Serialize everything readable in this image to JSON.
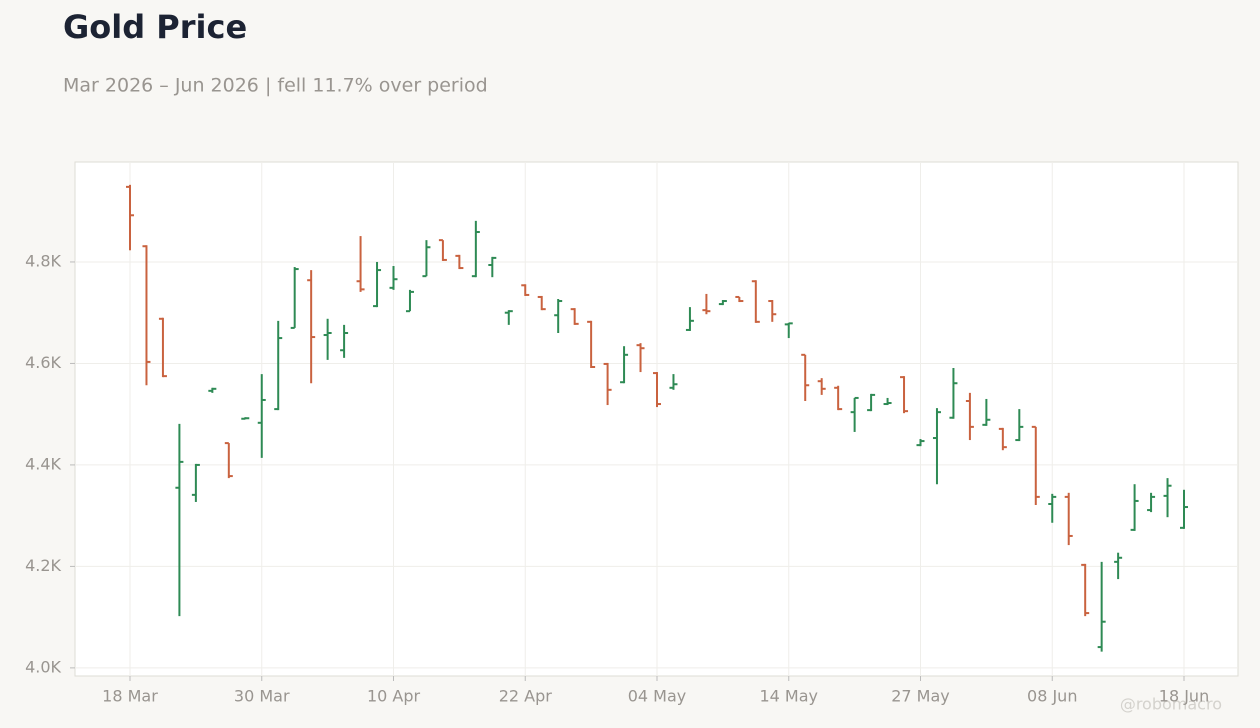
{
  "chart_data": {
    "type": "ohlc",
    "title": "Gold Price",
    "subtitle": "Mar 2026 – Jun 2026 | fell 11.7% over period",
    "watermark": "@robomacro",
    "categories": [
      "18 Mar",
      null,
      null,
      null,
      null,
      null,
      null,
      null,
      "30 Mar",
      null,
      null,
      null,
      null,
      null,
      null,
      null,
      "10 Apr",
      null,
      null,
      null,
      null,
      null,
      null,
      null,
      "22 Apr",
      null,
      null,
      null,
      null,
      null,
      null,
      null,
      "04 May",
      null,
      null,
      null,
      null,
      null,
      null,
      null,
      "14 May",
      null,
      null,
      null,
      null,
      null,
      null,
      null,
      "27 May",
      null,
      null,
      null,
      null,
      null,
      null,
      null,
      "08 Jun",
      null,
      null,
      null,
      null,
      null,
      null,
      null,
      "18 Jun"
    ],
    "open": [
      4948,
      4831,
      4688,
      4355,
      4341,
      4546,
      4443,
      4491,
      4483,
      4510,
      4670,
      4764,
      4656,
      4626,
      4762,
      4713,
      4749,
      4703,
      4772,
      4843,
      4812,
      4772,
      4794,
      4700,
      4754,
      4731,
      4695,
      4707,
      4682,
      4599,
      4563,
      4636,
      4581,
      4552,
      4666,
      4705,
      4717,
      4731,
      4762,
      4723,
      4677,
      4617,
      4565,
      4552,
      4504,
      4508,
      4520,
      4573,
      4439,
      4453,
      4493,
      4526,
      4479,
      4471,
      4449,
      4475,
      4323,
      4337,
      4203,
      4041,
      4209,
      4272,
      4311,
      4339,
      4276
    ],
    "high": [
      4952,
      4833,
      4690,
      4481,
      4402,
      4552,
      4443,
      4494,
      4579,
      4684,
      4790,
      4784,
      4688,
      4676,
      4851,
      4800,
      4792,
      4745,
      4843,
      4843,
      4814,
      4881,
      4810,
      4705,
      4756,
      4733,
      4727,
      4709,
      4684,
      4601,
      4634,
      4640,
      4583,
      4579,
      4711,
      4737,
      4725,
      4731,
      4764,
      4725,
      4680,
      4617,
      4571,
      4556,
      4532,
      4540,
      4532,
      4575,
      4451,
      4512,
      4591,
      4542,
      4530,
      4473,
      4510,
      4475,
      4343,
      4345,
      4205,
      4209,
      4227,
      4362,
      4345,
      4374,
      4351
    ],
    "low": [
      4823,
      4557,
      4573,
      4102,
      4327,
      4542,
      4374,
      4490,
      4414,
      4508,
      4670,
      4561,
      4607,
      4611,
      4741,
      4711,
      4745,
      4703,
      4772,
      4802,
      4786,
      4770,
      4770,
      4676,
      4733,
      4705,
      4660,
      4676,
      4591,
      4518,
      4561,
      4583,
      4514,
      4548,
      4664,
      4697,
      4715,
      4721,
      4680,
      4682,
      4650,
      4526,
      4538,
      4508,
      4465,
      4506,
      4518,
      4502,
      4437,
      4362,
      4491,
      4449,
      4477,
      4429,
      4447,
      4321,
      4286,
      4242,
      4102,
      4032,
      4175,
      4270,
      4307,
      4297,
      4274
    ],
    "close": [
      4892,
      4603,
      4575,
      4406,
      4400,
      4550,
      4378,
      4492,
      4528,
      4650,
      4786,
      4652,
      4660,
      4660,
      4746,
      4784,
      4766,
      4741,
      4829,
      4804,
      4788,
      4859,
      4808,
      4703,
      4735,
      4707,
      4723,
      4678,
      4593,
      4548,
      4617,
      4630,
      4520,
      4559,
      4684,
      4703,
      4723,
      4723,
      4682,
      4697,
      4679,
      4557,
      4550,
      4510,
      4532,
      4538,
      4522,
      4506,
      4447,
      4504,
      4561,
      4475,
      4489,
      4435,
      4475,
      4337,
      4337,
      4260,
      4108,
      4091,
      4217,
      4329,
      4337,
      4359,
      4317
    ],
    "up_color": "#2e8a54",
    "down_color": "#c9623f",
    "ylim": [
      3984,
      4997
    ],
    "yticks": [
      {
        "value": 4000,
        "label": "4.0K"
      },
      {
        "value": 4200,
        "label": "4.2K"
      },
      {
        "value": 4400,
        "label": "4.4K"
      },
      {
        "value": 4600,
        "label": "4.6K"
      },
      {
        "value": 4800,
        "label": "4.8K"
      }
    ],
    "grid": true
  }
}
